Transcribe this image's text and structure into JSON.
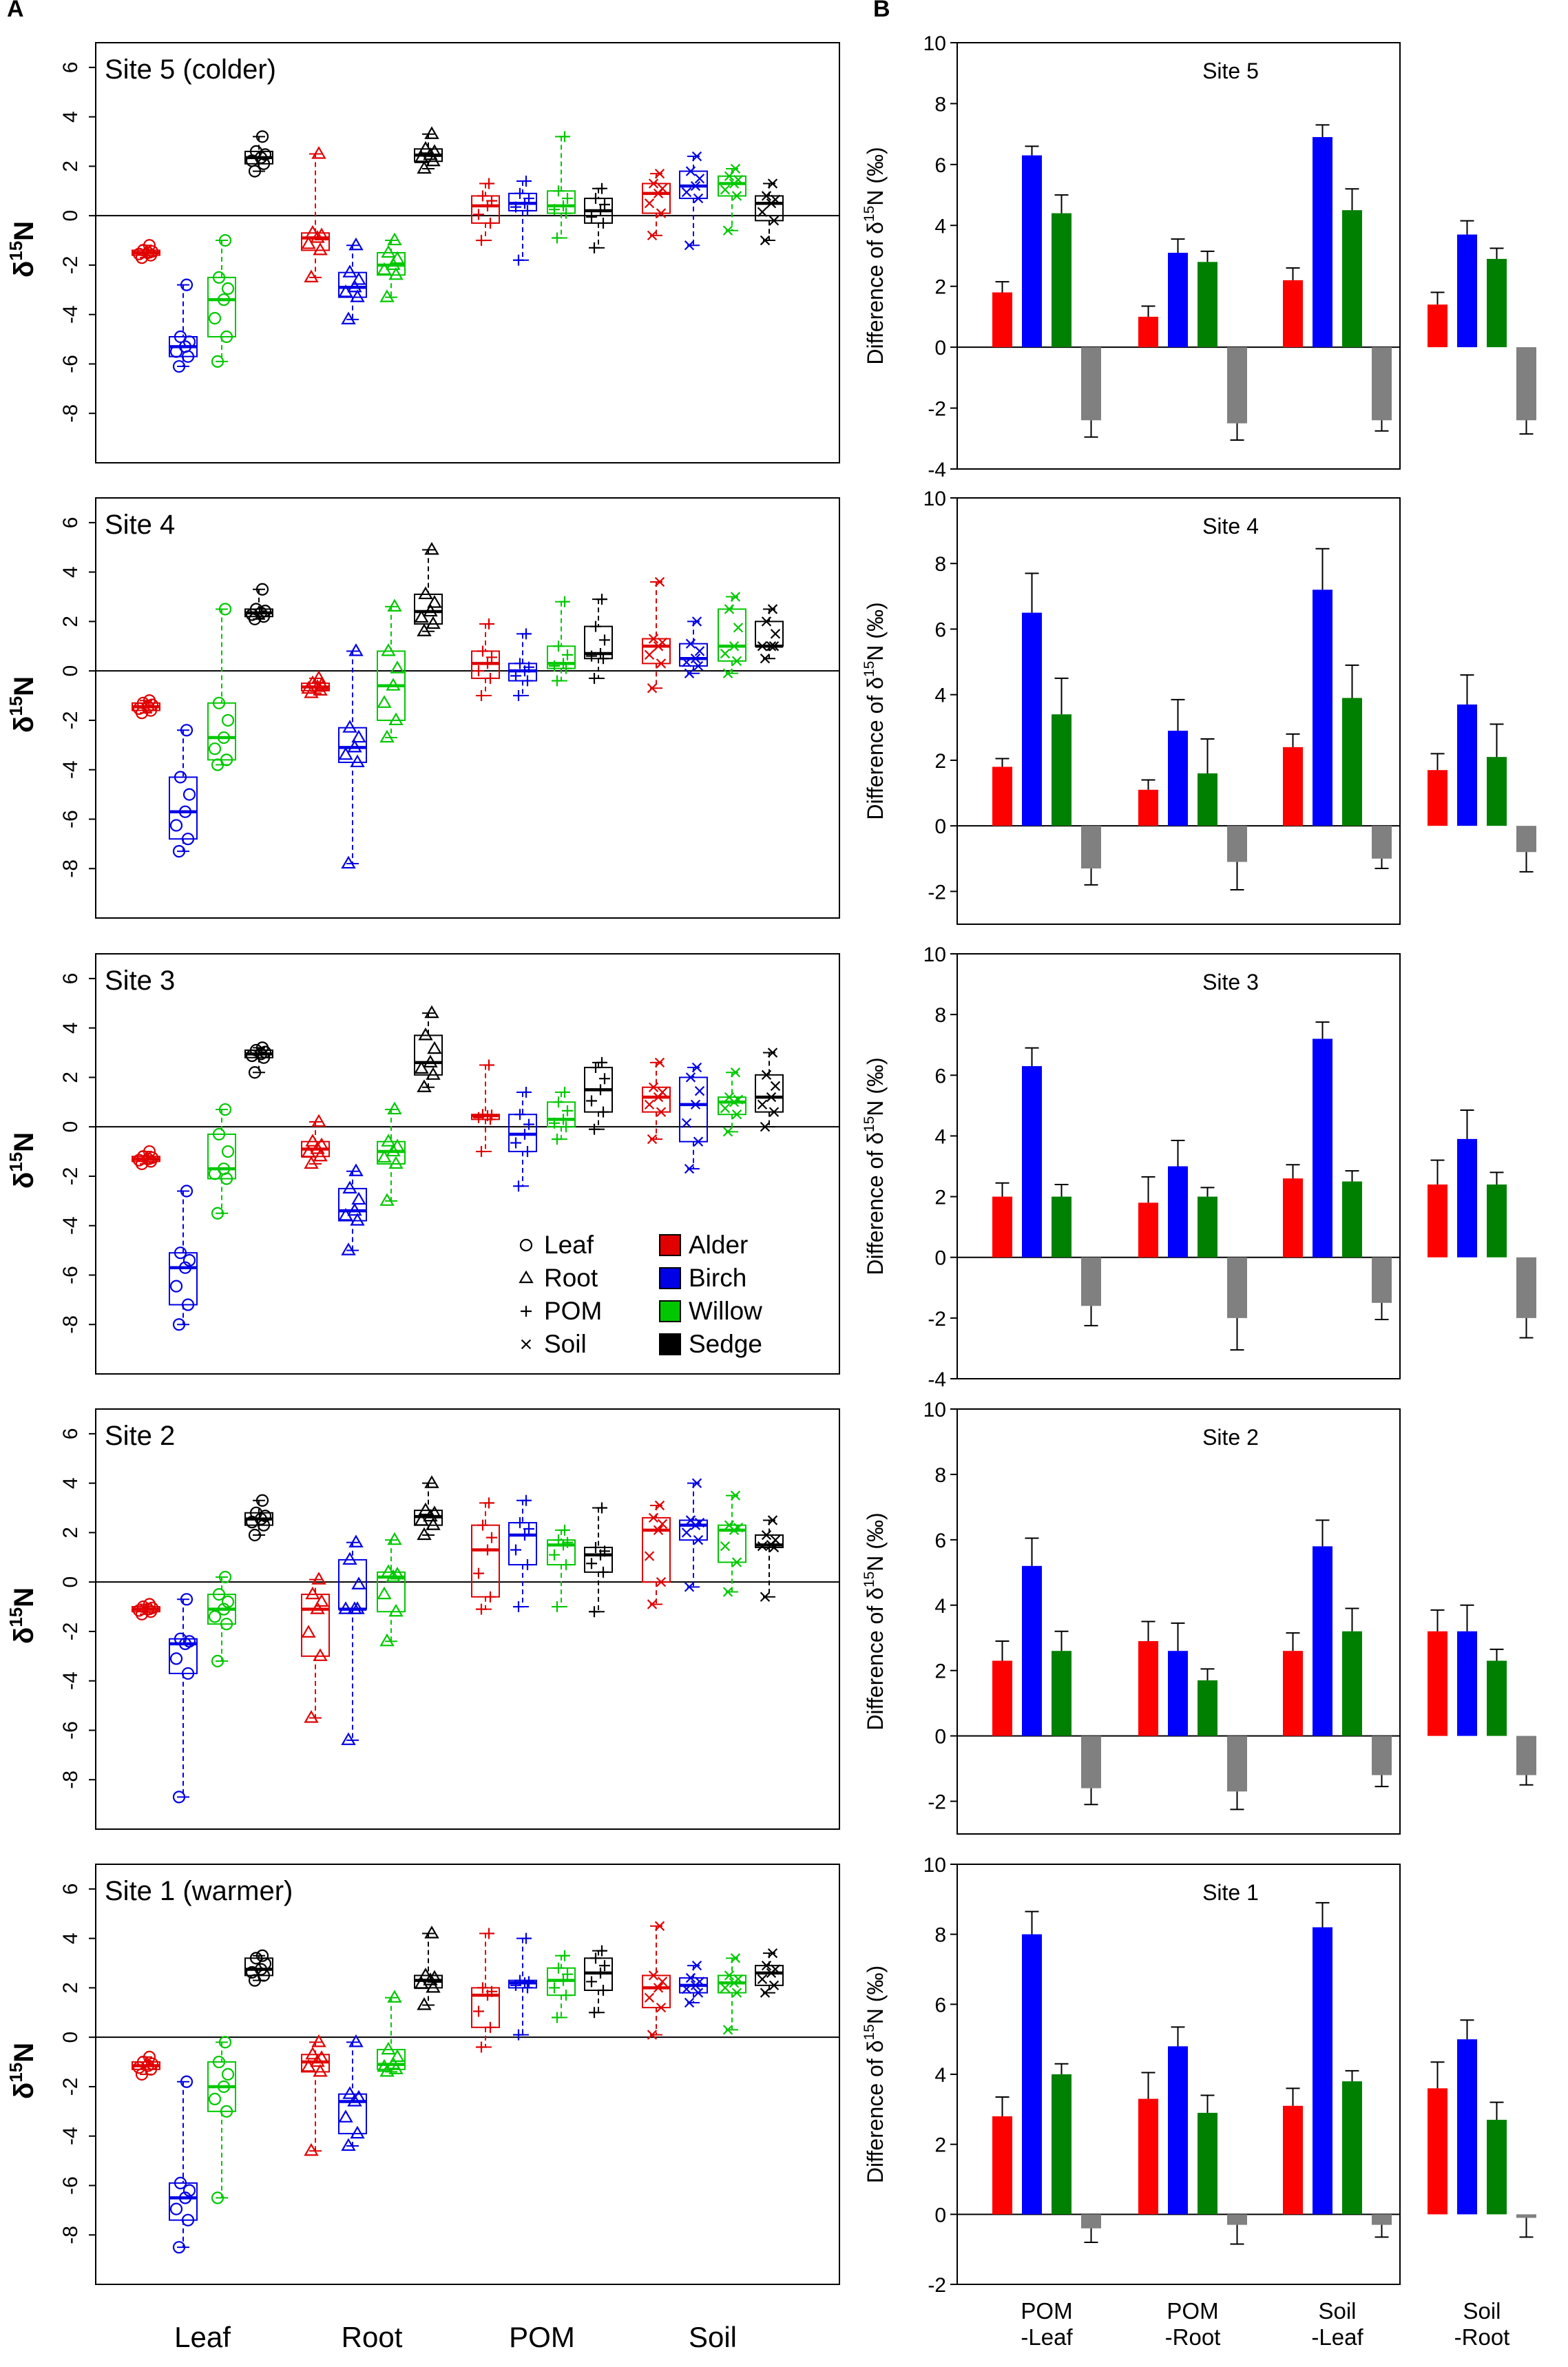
{
  "figure": {
    "panel_a_label": "A",
    "panel_b_label": "B"
  },
  "legend": {
    "tissues": [
      {
        "symbol": "circle",
        "label": "Leaf"
      },
      {
        "symbol": "triangle",
        "label": "Root"
      },
      {
        "symbol": "plus",
        "label": "POM"
      },
      {
        "symbol": "cross",
        "label": "Soil"
      }
    ],
    "species": [
      {
        "label": "Alder",
        "color": "#e00000"
      },
      {
        "label": "Birch",
        "color": "#0000e6"
      },
      {
        "label": "Willow",
        "color": "#00c800"
      },
      {
        "label": "Sedge",
        "color": "#000000"
      }
    ]
  },
  "chart_data": [
    {
      "panel": "A",
      "type": "boxplot",
      "ylabel": "δ15N",
      "ylim": [
        -10,
        7
      ],
      "yticks": [
        -8,
        -6,
        -4,
        -2,
        0,
        2,
        4,
        6
      ],
      "groups": [
        "Leaf",
        "Root",
        "POM",
        "Soil"
      ],
      "species_order": [
        "Alder",
        "Birch",
        "Willow",
        "Sedge"
      ],
      "colors": [
        "#e00000",
        "#0000e6",
        "#00c800",
        "#000000"
      ],
      "markers": [
        "circle",
        "triangle",
        "plus",
        "cross"
      ],
      "sites": [
        {
          "title": "Site 5 (colder)",
          "boxes": [
            [
              [
                -1.7,
                -1.6,
                -1.5,
                -1.4,
                -1.2
              ],
              [
                -6.1,
                -5.7,
                -5.3,
                -4.9,
                -2.8
              ],
              [
                -5.9,
                -4.9,
                -3.4,
                -2.5,
                -1.0
              ],
              [
                1.8,
                2.1,
                2.35,
                2.6,
                3.2
              ]
            ],
            [
              [
                -2.5,
                -1.4,
                -0.9,
                -0.7,
                2.5
              ],
              [
                -4.2,
                -3.3,
                -2.9,
                -2.3,
                -1.2
              ],
              [
                -3.3,
                -2.4,
                -2.0,
                -1.5,
                -1.0
              ],
              [
                1.9,
                2.2,
                2.45,
                2.7,
                3.3
              ]
            ],
            [
              [
                -1.0,
                -0.3,
                0.4,
                0.8,
                1.3
              ],
              [
                -1.8,
                0.2,
                0.5,
                0.9,
                1.4
              ],
              [
                -0.9,
                0.1,
                0.4,
                1.0,
                3.2
              ],
              [
                -1.3,
                -0.3,
                0.2,
                0.7,
                1.1
              ]
            ],
            [
              [
                -0.8,
                0.1,
                0.9,
                1.3,
                1.7
              ],
              [
                -1.2,
                0.7,
                1.2,
                1.8,
                2.4
              ],
              [
                -0.6,
                0.8,
                1.3,
                1.6,
                1.9
              ],
              [
                -1.0,
                -0.2,
                0.5,
                0.8,
                1.3
              ]
            ]
          ]
        },
        {
          "title": "Site 4",
          "boxes": [
            [
              [
                -1.7,
                -1.6,
                -1.45,
                -1.3,
                -1.2
              ],
              [
                -7.3,
                -6.8,
                -5.7,
                -4.3,
                -2.4
              ],
              [
                -3.8,
                -3.6,
                -2.7,
                -1.3,
                2.5
              ],
              [
                2.1,
                2.2,
                2.35,
                2.5,
                3.3
              ]
            ],
            [
              [
                -0.9,
                -0.8,
                -0.65,
                -0.5,
                -0.3
              ],
              [
                -7.8,
                -3.7,
                -3.1,
                -2.3,
                0.8
              ],
              [
                -2.7,
                -2.0,
                -0.6,
                0.8,
                2.6
              ],
              [
                1.6,
                1.9,
                2.4,
                3.1,
                4.9
              ]
            ],
            [
              [
                -1.0,
                -0.3,
                0.3,
                0.8,
                1.9
              ],
              [
                -1.0,
                -0.4,
                0.0,
                0.3,
                1.5
              ],
              [
                -0.4,
                0.1,
                0.3,
                1.0,
                2.8
              ],
              [
                -0.3,
                0.5,
                0.7,
                1.8,
                2.9
              ]
            ],
            [
              [
                -0.7,
                0.3,
                1.0,
                1.3,
                3.6
              ],
              [
                -0.1,
                0.2,
                0.5,
                1.1,
                2.0
              ],
              [
                -0.1,
                0.4,
                1.0,
                2.5,
                3.0
              ],
              [
                0.5,
                1.0,
                1.0,
                2.0,
                2.5
              ]
            ]
          ]
        },
        {
          "title": "Site 3",
          "boxes": [
            [
              [
                -1.5,
                -1.4,
                -1.3,
                -1.2,
                -1.0
              ],
              [
                -8.0,
                -7.2,
                -5.7,
                -5.1,
                -2.6
              ],
              [
                -3.5,
                -2.1,
                -1.7,
                -0.3,
                0.7
              ],
              [
                2.2,
                2.8,
                2.95,
                3.1,
                3.2
              ]
            ],
            [
              [
                -1.5,
                -1.2,
                -0.9,
                -0.6,
                0.2
              ],
              [
                -5.0,
                -3.8,
                -3.4,
                -2.5,
                -1.8
              ],
              [
                -3.0,
                -1.5,
                -1.0,
                -0.6,
                0.7
              ],
              [
                1.6,
                2.1,
                2.6,
                3.7,
                4.6
              ]
            ],
            [
              [
                -1.0,
                0.3,
                0.45,
                0.5,
                2.5
              ],
              [
                -2.4,
                -1.0,
                -0.3,
                0.5,
                1.4
              ],
              [
                -0.5,
                0.0,
                0.3,
                1.0,
                1.4
              ],
              [
                -0.1,
                0.6,
                1.5,
                2.4,
                2.6
              ]
            ],
            [
              [
                -0.5,
                0.6,
                1.2,
                1.6,
                2.6
              ],
              [
                -1.7,
                -0.6,
                0.9,
                2.0,
                2.4
              ],
              [
                -0.2,
                0.5,
                1.0,
                1.2,
                2.2
              ],
              [
                0.0,
                0.6,
                1.2,
                2.1,
                3.0
              ]
            ]
          ]
        },
        {
          "title": "Site 2",
          "boxes": [
            [
              [
                -1.3,
                -1.2,
                -1.1,
                -1.0,
                -0.9
              ],
              [
                -8.7,
                -3.7,
                -2.5,
                -2.3,
                -0.7
              ],
              [
                -3.2,
                -1.7,
                -1.1,
                -0.5,
                0.2
              ],
              [
                1.9,
                2.3,
                2.55,
                2.8,
                3.3
              ]
            ],
            [
              [
                -5.5,
                -3.0,
                -1.1,
                -0.5,
                0.1
              ],
              [
                -6.4,
                -1.1,
                -1.1,
                0.9,
                1.6
              ],
              [
                -2.4,
                -1.2,
                0.2,
                0.4,
                1.7
              ],
              [
                1.9,
                2.3,
                2.65,
                2.9,
                4.0
              ]
            ],
            [
              [
                -1.1,
                -0.6,
                1.3,
                2.3,
                3.2
              ],
              [
                -1.0,
                0.7,
                1.9,
                2.4,
                3.3
              ],
              [
                -1.0,
                0.7,
                1.5,
                1.7,
                2.1
              ],
              [
                -1.2,
                0.4,
                1.1,
                1.4,
                3.0
              ]
            ],
            [
              [
                -0.9,
                0.0,
                2.1,
                2.6,
                3.1
              ],
              [
                -0.2,
                1.7,
                2.3,
                2.5,
                4.0
              ],
              [
                -0.4,
                0.8,
                2.1,
                2.3,
                3.5
              ],
              [
                -0.6,
                1.4,
                1.5,
                1.9,
                2.5
              ]
            ]
          ]
        },
        {
          "title": "Site 1 (warmer)",
          "boxes": [
            [
              [
                -1.5,
                -1.3,
                -1.15,
                -1.0,
                -0.8
              ],
              [
                -8.5,
                -7.4,
                -6.5,
                -5.9,
                -1.8
              ],
              [
                -6.5,
                -3.0,
                -2.0,
                -1.0,
                -0.2
              ],
              [
                2.3,
                2.5,
                2.75,
                3.2,
                3.3
              ]
            ],
            [
              [
                -4.6,
                -1.4,
                -1.0,
                -0.7,
                -0.2
              ],
              [
                -4.4,
                -3.9,
                -2.6,
                -2.3,
                -0.2
              ],
              [
                -1.4,
                -1.3,
                -1.1,
                -0.5,
                1.6
              ],
              [
                1.3,
                2.0,
                2.3,
                2.5,
                4.2
              ]
            ],
            [
              [
                -0.4,
                0.4,
                1.7,
                2.0,
                4.2
              ],
              [
                0.1,
                2.0,
                2.2,
                2.3,
                4.0
              ],
              [
                0.8,
                1.7,
                2.3,
                2.8,
                3.3
              ],
              [
                1.0,
                1.9,
                2.6,
                3.2,
                3.5
              ]
            ],
            [
              [
                0.1,
                1.2,
                2.0,
                2.5,
                4.5
              ],
              [
                1.4,
                1.8,
                2.1,
                2.4,
                2.9
              ],
              [
                0.3,
                1.8,
                2.2,
                2.5,
                3.2
              ],
              [
                1.8,
                2.1,
                2.6,
                2.9,
                3.4
              ]
            ]
          ]
        }
      ]
    },
    {
      "panel": "B",
      "type": "bar",
      "ylabel": "Difference of δ15N (‰)",
      "ylim": [
        -4,
        10
      ],
      "yticks": [
        -4,
        -2,
        0,
        2,
        4,
        6,
        8,
        10
      ],
      "categories": [
        "POM\n-Leaf",
        "POM\n-Root",
        "Soil\n-Leaf",
        "Soil\n-Root"
      ],
      "series_names": [
        "Alder",
        "Birch",
        "Willow",
        "Sedge"
      ],
      "colors": [
        "#ff0000",
        "#0000ff",
        "#008000",
        "#808080"
      ],
      "sites": [
        {
          "title": "Site 5",
          "ylim": [
            -4,
            10
          ],
          "values": [
            [
              1.8,
              6.3,
              4.4,
              -2.4
            ],
            [
              1.0,
              3.1,
              2.8,
              -2.5
            ],
            [
              2.2,
              6.9,
              4.5,
              -2.4
            ],
            [
              1.4,
              3.7,
              2.9,
              -2.4
            ]
          ],
          "errors": [
            [
              0.35,
              0.3,
              0.6,
              0.55
            ],
            [
              0.35,
              0.45,
              0.35,
              0.55
            ],
            [
              0.4,
              0.4,
              0.7,
              0.35
            ],
            [
              0.4,
              0.45,
              0.35,
              0.45
            ]
          ]
        },
        {
          "title": "Site 4",
          "ylim": [
            -3,
            10
          ],
          "values": [
            [
              1.8,
              6.5,
              3.4,
              -1.3
            ],
            [
              1.1,
              2.9,
              1.6,
              -1.1
            ],
            [
              2.4,
              7.2,
              3.9,
              -1.0
            ],
            [
              1.7,
              3.7,
              2.1,
              -0.8
            ]
          ],
          "errors": [
            [
              0.25,
              1.2,
              1.1,
              0.5
            ],
            [
              0.3,
              0.95,
              1.05,
              0.85
            ],
            [
              0.4,
              1.25,
              1.0,
              0.3
            ],
            [
              0.5,
              0.9,
              1.0,
              0.6
            ]
          ]
        },
        {
          "title": "Site 3",
          "ylim": [
            -4,
            10
          ],
          "values": [
            [
              2.0,
              6.3,
              2.0,
              -1.6
            ],
            [
              1.8,
              3.0,
              2.0,
              -2.0
            ],
            [
              2.6,
              7.2,
              2.5,
              -1.5
            ],
            [
              2.4,
              3.9,
              2.4,
              -2.0
            ]
          ],
          "errors": [
            [
              0.45,
              0.6,
              0.4,
              0.65
            ],
            [
              0.85,
              0.85,
              0.3,
              1.05
            ],
            [
              0.45,
              0.55,
              0.35,
              0.55
            ],
            [
              0.8,
              0.95,
              0.4,
              0.65
            ]
          ]
        },
        {
          "title": "Site 2",
          "ylim": [
            -3,
            10
          ],
          "values": [
            [
              2.3,
              5.2,
              2.6,
              -1.6
            ],
            [
              2.9,
              2.6,
              1.7,
              -1.7
            ],
            [
              2.6,
              5.8,
              3.2,
              -1.2
            ],
            [
              3.2,
              3.2,
              2.3,
              -1.2
            ]
          ],
          "errors": [
            [
              0.6,
              0.85,
              0.6,
              0.5
            ],
            [
              0.6,
              0.85,
              0.35,
              0.55
            ],
            [
              0.55,
              0.8,
              0.7,
              0.35
            ],
            [
              0.65,
              0.8,
              0.35,
              0.3
            ]
          ]
        },
        {
          "title": "Site 1",
          "ylim": [
            -2,
            10
          ],
          "values": [
            [
              2.8,
              8.0,
              4.0,
              -0.4
            ],
            [
              3.3,
              4.8,
              2.9,
              -0.3
            ],
            [
              3.1,
              8.2,
              3.8,
              -0.3
            ],
            [
              3.6,
              5.0,
              2.7,
              -0.1
            ]
          ],
          "errors": [
            [
              0.55,
              0.65,
              0.3,
              0.4
            ],
            [
              0.75,
              0.55,
              0.5,
              0.55
            ],
            [
              0.5,
              0.7,
              0.3,
              0.35
            ],
            [
              0.75,
              0.55,
              0.5,
              0.55
            ]
          ]
        }
      ]
    }
  ]
}
